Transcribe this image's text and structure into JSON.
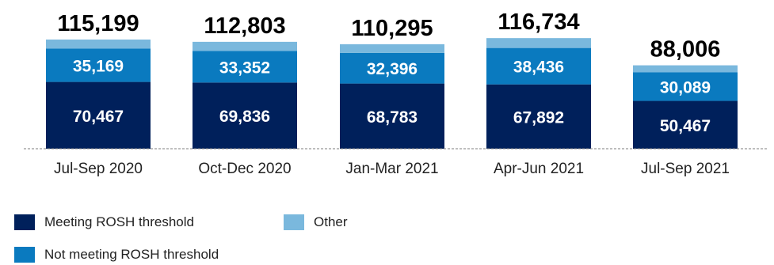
{
  "chart_data": {
    "type": "bar",
    "stacked": true,
    "categories": [
      "Jul-Sep 2020",
      "Oct-Dec 2020",
      "Jan-Mar 2021",
      "Apr-Jun 2021",
      "Jul-Sep 2021"
    ],
    "series": [
      {
        "name": "Meeting ROSH threshold",
        "color": "#00205b",
        "values": [
          70467,
          69836,
          68783,
          67892,
          50467
        ]
      },
      {
        "name": "Not meeting ROSH threshold",
        "color": "#0a7abf",
        "values": [
          35169,
          33352,
          32396,
          38436,
          30089
        ]
      },
      {
        "name": "Other",
        "color": "#7ab8dd",
        "values": [
          9563,
          9615,
          9116,
          10406,
          7450
        ]
      }
    ],
    "totals": [
      115199,
      112803,
      110295,
      116734,
      88006
    ],
    "value_labels": {
      "meeting": [
        "70,467",
        "69,836",
        "68,783",
        "67,892",
        "50,467"
      ],
      "not_meeting": [
        "35,169",
        "33,352",
        "32,396",
        "38,436",
        "30,089"
      ],
      "totals": [
        "115,199",
        "112,803",
        "110,295",
        "116,734",
        "88,006"
      ]
    },
    "legend_position": "bottom-left",
    "grid": false
  }
}
